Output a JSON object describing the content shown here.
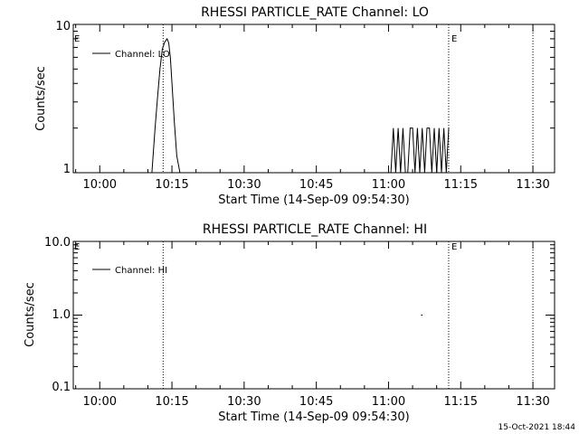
{
  "footer": {
    "timestamp": "15-Oct-2021 18:44"
  },
  "chart_data": [
    {
      "type": "line",
      "title": "RHESSI PARTICLE_RATE Channel: LO",
      "xlabel": "Start Time (14-Sep-09 09:54:30)",
      "ylabel": "Counts/sec",
      "x_tick_labels": [
        "10:00",
        "10:15",
        "10:30",
        "10:45",
        "11:00",
        "11:15",
        "11:30"
      ],
      "xlim": [
        "09:54:30",
        "11:34:30"
      ],
      "y_tick_labels": [
        "1",
        "10"
      ],
      "ylim": [
        1,
        10
      ],
      "y_scale": "log",
      "grid": false,
      "legend_position": "top-left",
      "event_lines": [
        {
          "time": "10:13:10",
          "label": ""
        },
        {
          "time": "11:12:30",
          "label": "E"
        },
        {
          "time": "11:30:00",
          "label": ""
        }
      ],
      "corner_marker": "E",
      "series": [
        {
          "name": "Channel: LO",
          "x": [
            "10:10:50",
            "10:11:30",
            "10:12:00",
            "10:12:30",
            "10:13:00",
            "10:13:30",
            "10:14:00",
            "10:14:20",
            "10:14:40",
            "10:15:00",
            "10:15:30",
            "10:16:00",
            "10:16:40",
            "11:00:30",
            "11:01:00",
            "11:01:30",
            "11:02:00",
            "11:02:30",
            "11:03:00",
            "11:03:30",
            "11:04:00",
            "11:04:30",
            "11:05:00",
            "11:05:30",
            "11:06:00",
            "11:06:30",
            "11:07:00",
            "11:07:30",
            "11:08:00",
            "11:08:30",
            "11:09:00",
            "11:09:30",
            "11:10:00",
            "11:10:30",
            "11:11:00",
            "11:11:30",
            "11:12:00",
            "11:12:30"
          ],
          "values": [
            1,
            2,
            3.2,
            5,
            6.8,
            7.6,
            8,
            7.5,
            6,
            4,
            2.2,
            1.3,
            1,
            1,
            2,
            1,
            2,
            1,
            2,
            1,
            1,
            2,
            2,
            1,
            2,
            1,
            2,
            1,
            2,
            2,
            1,
            2,
            1,
            2,
            1,
            2,
            1,
            2
          ]
        }
      ]
    },
    {
      "type": "line",
      "title": "RHESSI PARTICLE_RATE Channel: HI",
      "xlabel": "Start Time (14-Sep-09 09:54:30)",
      "ylabel": "Counts/sec",
      "x_tick_labels": [
        "10:00",
        "10:15",
        "10:30",
        "10:45",
        "11:00",
        "11:15",
        "11:30"
      ],
      "xlim": [
        "09:54:30",
        "11:34:30"
      ],
      "y_tick_labels": [
        "0.1",
        "1.0",
        "10.0"
      ],
      "ylim": [
        0.1,
        10
      ],
      "y_scale": "log",
      "grid": false,
      "legend_position": "top-left",
      "event_lines": [
        {
          "time": "10:13:10",
          "label": ""
        },
        {
          "time": "11:12:30",
          "label": "E"
        },
        {
          "time": "11:30:00",
          "label": ""
        }
      ],
      "corner_marker": "E",
      "series": [
        {
          "name": "Channel: HI",
          "x": [
            "11:06:45",
            "11:07:05"
          ],
          "values": [
            1,
            1
          ]
        }
      ]
    }
  ]
}
